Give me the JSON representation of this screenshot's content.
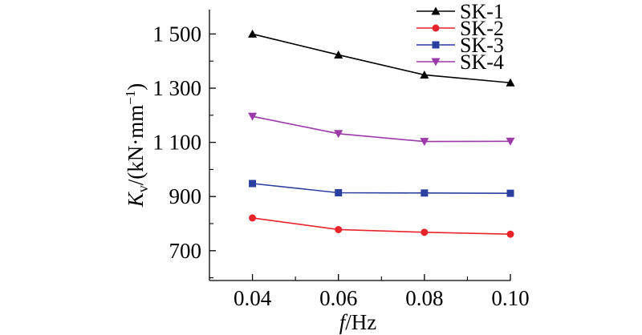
{
  "chart_data": {
    "type": "line",
    "x": [
      0.04,
      0.06,
      0.08,
      0.1
    ],
    "x_tick_labels": [
      "0.04",
      "0.06",
      "0.08",
      "0.10"
    ],
    "y_ticks": [
      700,
      900,
      1100,
      1300,
      1500
    ],
    "y_tick_labels": [
      "700",
      "900",
      "1 100",
      "1 300",
      "1 500"
    ],
    "xlim": [
      0.03,
      0.1
    ],
    "ylim": [
      590,
      1590
    ],
    "xlabel": {
      "italic": "f",
      "rest": "/Hz"
    },
    "ylabel": {
      "italic": "K",
      "sub": "v",
      "rest": "/(kN·mm",
      "sup": "−1",
      "close": ")"
    },
    "legend_position": "top-right",
    "grid": false,
    "series": [
      {
        "name": "SK-1",
        "color": "#000000",
        "marker": "triangle-up",
        "values": [
          1500,
          1423,
          1349,
          1320
        ]
      },
      {
        "name": "SK-2",
        "color": "#e8242a",
        "marker": "circle",
        "values": [
          821,
          778,
          768,
          761
        ]
      },
      {
        "name": "SK-3",
        "color": "#2a3fa0",
        "marker": "square",
        "values": [
          948,
          914,
          913,
          912
        ]
      },
      {
        "name": "SK-4",
        "color": "#9b3aa8",
        "marker": "triangle-down",
        "values": [
          1196,
          1132,
          1103,
          1104
        ]
      }
    ]
  }
}
